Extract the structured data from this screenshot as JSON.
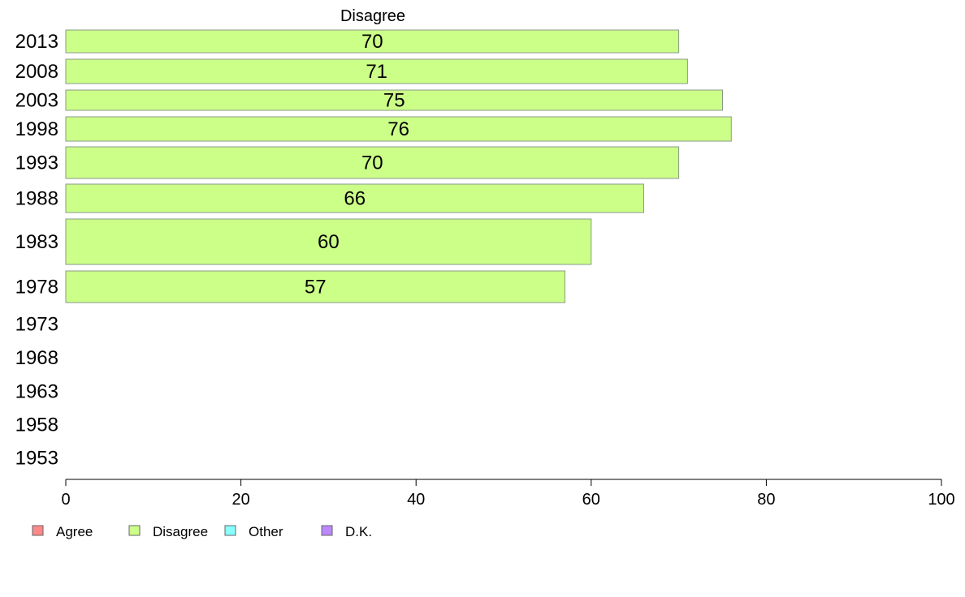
{
  "chart_data": {
    "type": "bar",
    "orientation": "horizontal",
    "title": "Disagree",
    "categories": [
      "2013",
      "2008",
      "2003",
      "1998",
      "1993",
      "1988",
      "1983",
      "1978",
      "1973",
      "1968",
      "1963",
      "1958",
      "1953"
    ],
    "series": [
      {
        "name": "Disagree",
        "color": "#ccff88",
        "values": [
          70,
          71,
          75,
          76,
          70,
          66,
          60,
          57,
          null,
          null,
          null,
          null,
          null
        ],
        "labels": [
          "70",
          "71",
          "75",
          "76",
          "70",
          "66",
          "60",
          "57",
          "",
          "",
          "",
          "",
          ""
        ]
      }
    ],
    "xlim": [
      0,
      100
    ],
    "xticks": [
      0,
      20,
      40,
      60,
      80,
      100
    ],
    "grid": false,
    "legend": {
      "placement": "bottom-left",
      "entries": [
        {
          "label": "Agree",
          "color": "#ff8888"
        },
        {
          "label": "Disagree",
          "color": "#ccff88"
        },
        {
          "label": "Other",
          "color": "#88ffff"
        },
        {
          "label": "D.K.",
          "color": "#bb88ff"
        }
      ]
    }
  }
}
